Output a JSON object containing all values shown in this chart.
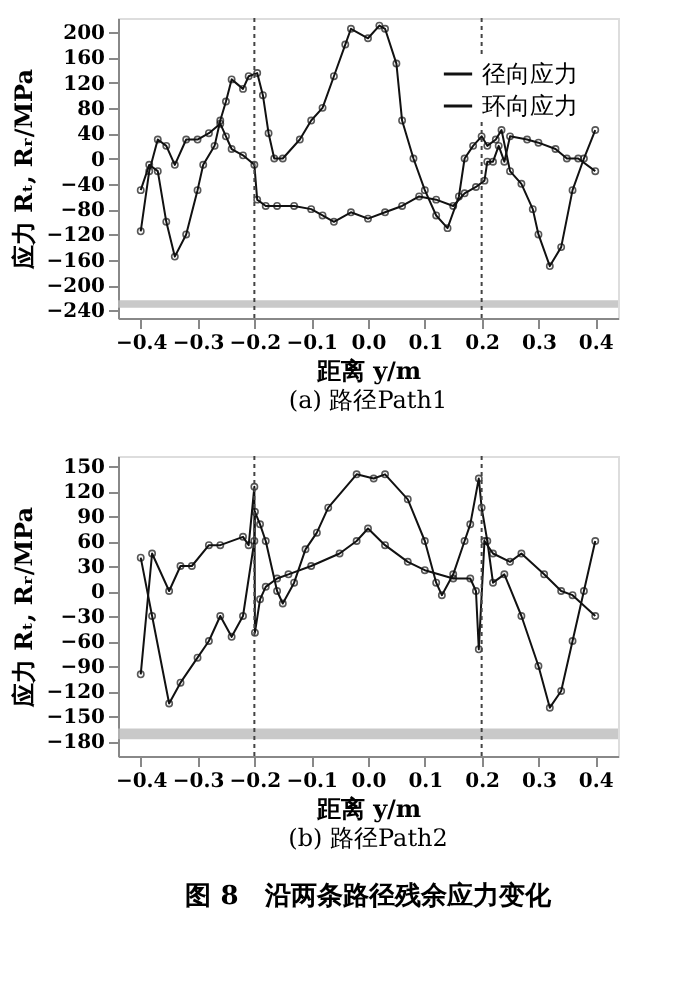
{
  "chart_data": [
    {
      "type": "line",
      "title": "(a) 路径Path1",
      "xlabel": "距离 y/m",
      "ylabel": "应力 Rₜ, Rᵣ/MPa",
      "legend": "top right",
      "marker": "circle",
      "xlim": [
        -0.44,
        0.44
      ],
      "xticks": [
        -0.4,
        -0.3,
        -0.2,
        -0.1,
        {
          "value": 0,
          "label": "0.0"
        },
        0.1,
        0.2,
        0.3,
        0.4
      ],
      "ylim": [
        -252,
        222
      ],
      "yticks": [
        -240,
        -200,
        -160,
        -120,
        -80,
        -40,
        0,
        40,
        80,
        120,
        160,
        200
      ],
      "ref_lines": [
        {
          "axis": "x",
          "value": -0.2,
          "color": "#444444",
          "line_style": "dotted"
        },
        {
          "axis": "x",
          "value": 0.2,
          "color": "#444444",
          "line_style": "dotted"
        }
      ],
      "bands": [
        {
          "axis": "y",
          "from": -236,
          "to": -224,
          "color": "#bbbbbb"
        }
      ],
      "series": [
        {
          "name": "径向应力",
          "color": "#111111",
          "x": [
            -0.4,
            -0.385,
            -0.37,
            -0.355,
            -0.34,
            -0.32,
            -0.3,
            -0.28,
            -0.26,
            -0.25,
            -0.24,
            -0.22,
            -0.2,
            -0.195,
            -0.18,
            -0.16,
            -0.13,
            -0.1,
            -0.08,
            -0.06,
            -0.03,
            0.0,
            0.03,
            0.06,
            0.09,
            0.12,
            0.15,
            0.17,
            0.19,
            0.205,
            0.21,
            0.22,
            0.23,
            0.24,
            0.25,
            0.28,
            0.3,
            0.33,
            0.35,
            0.37,
            0.4
          ],
          "values": [
            -115,
            -20,
            30,
            20,
            -10,
            30,
            30,
            40,
            55,
            35,
            15,
            5,
            -10,
            -65,
            -75,
            -75,
            -75,
            -80,
            -90,
            -100,
            -85,
            -95,
            -85,
            -75,
            -60,
            -65,
            -75,
            -55,
            -45,
            -35,
            -5,
            -5,
            20,
            -5,
            35,
            30,
            25,
            15,
            0,
            0,
            -20
          ]
        },
        {
          "name": "环向应力",
          "color": "#111111",
          "x": [
            -0.4,
            -0.385,
            -0.37,
            -0.355,
            -0.34,
            -0.32,
            -0.3,
            -0.29,
            -0.27,
            -0.26,
            -0.25,
            -0.24,
            -0.22,
            -0.21,
            -0.195,
            -0.185,
            -0.175,
            -0.165,
            -0.15,
            -0.12,
            -0.1,
            -0.08,
            -0.06,
            -0.04,
            -0.03,
            0.0,
            0.02,
            0.03,
            0.05,
            0.06,
            0.08,
            0.1,
            0.12,
            0.14,
            0.16,
            0.17,
            0.185,
            0.2,
            0.21,
            0.225,
            0.235,
            0.25,
            0.27,
            0.29,
            0.3,
            0.32,
            0.34,
            0.36,
            0.38,
            0.4
          ],
          "values": [
            -50,
            -10,
            -20,
            -100,
            -155,
            -120,
            -50,
            -10,
            20,
            60,
            90,
            125,
            110,
            130,
            135,
            100,
            40,
            0,
            0,
            30,
            60,
            80,
            130,
            180,
            205,
            190,
            210,
            205,
            150,
            60,
            0,
            -50,
            -90,
            -110,
            -60,
            0,
            20,
            35,
            20,
            30,
            45,
            -20,
            -40,
            -80,
            -120,
            -170,
            -140,
            -50,
            0,
            45
          ]
        }
      ]
    },
    {
      "type": "line",
      "title": "(b) 路径Path2",
      "xlabel": "距离 y/m",
      "ylabel": "应力 Rₜ, Rᵣ/MPa",
      "legend": "top right",
      "marker": "circle",
      "annotations": [
        "图 8　沿两条路径残余应力变化"
      ],
      "xlim": [
        -0.44,
        0.44
      ],
      "xticks": [
        -0.4,
        -0.3,
        -0.2,
        -0.1,
        {
          "value": 0,
          "label": "0.0"
        },
        0.1,
        0.2,
        0.3,
        0.4
      ],
      "ylim": [
        -198,
        162
      ],
      "yticks": [
        -180,
        -150,
        -120,
        -90,
        -60,
        -30,
        0,
        30,
        60,
        90,
        120,
        150
      ],
      "ref_lines": [
        {
          "axis": "x",
          "value": -0.2,
          "color": "#444444",
          "line_style": "dotted"
        },
        {
          "axis": "x",
          "value": 0.2,
          "color": "#444444",
          "line_style": "dotted"
        }
      ],
      "bands": [
        {
          "axis": "y",
          "from": -178,
          "to": -165,
          "color": "#bbbbbb"
        }
      ],
      "series": [
        {
          "name": "径向应力",
          "color": "#111111",
          "x": [
            -0.4,
            -0.38,
            -0.35,
            -0.33,
            -0.31,
            -0.28,
            -0.26,
            -0.22,
            -0.21,
            -0.2,
            -0.199,
            -0.19,
            -0.18,
            -0.16,
            -0.14,
            -0.1,
            -0.05,
            -0.02,
            0.0,
            0.03,
            0.07,
            0.1,
            0.15,
            0.18,
            0.19,
            0.195,
            0.205,
            0.22,
            0.25,
            0.27,
            0.31,
            0.34,
            0.36,
            0.4
          ],
          "values": [
            -100,
            45,
            0,
            30,
            30,
            55,
            55,
            65,
            55,
            125,
            -50,
            -10,
            5,
            15,
            20,
            30,
            45,
            60,
            75,
            55,
            35,
            25,
            15,
            15,
            0,
            -70,
            60,
            45,
            35,
            45,
            20,
            0,
            -5,
            -30
          ]
        },
        {
          "name": "环向应力",
          "color": "#111111",
          "x": [
            -0.4,
            -0.38,
            -0.35,
            -0.33,
            -0.3,
            -0.28,
            -0.26,
            -0.24,
            -0.22,
            -0.2,
            -0.199,
            -0.19,
            -0.18,
            -0.16,
            -0.15,
            -0.13,
            -0.11,
            -0.09,
            -0.07,
            -0.02,
            0.01,
            0.03,
            0.07,
            0.1,
            0.12,
            0.13,
            0.15,
            0.17,
            0.18,
            0.195,
            0.2,
            0.21,
            0.22,
            0.24,
            0.27,
            0.3,
            0.32,
            0.34,
            0.36,
            0.38,
            0.4
          ],
          "values": [
            40,
            -30,
            -135,
            -110,
            -80,
            -60,
            -30,
            -55,
            -30,
            60,
            95,
            80,
            60,
            0,
            -15,
            10,
            50,
            70,
            100,
            140,
            135,
            140,
            110,
            60,
            10,
            -5,
            20,
            60,
            80,
            135,
            100,
            60,
            10,
            20,
            -30,
            -90,
            -140,
            -120,
            -60,
            0,
            60
          ]
        }
      ]
    }
  ]
}
